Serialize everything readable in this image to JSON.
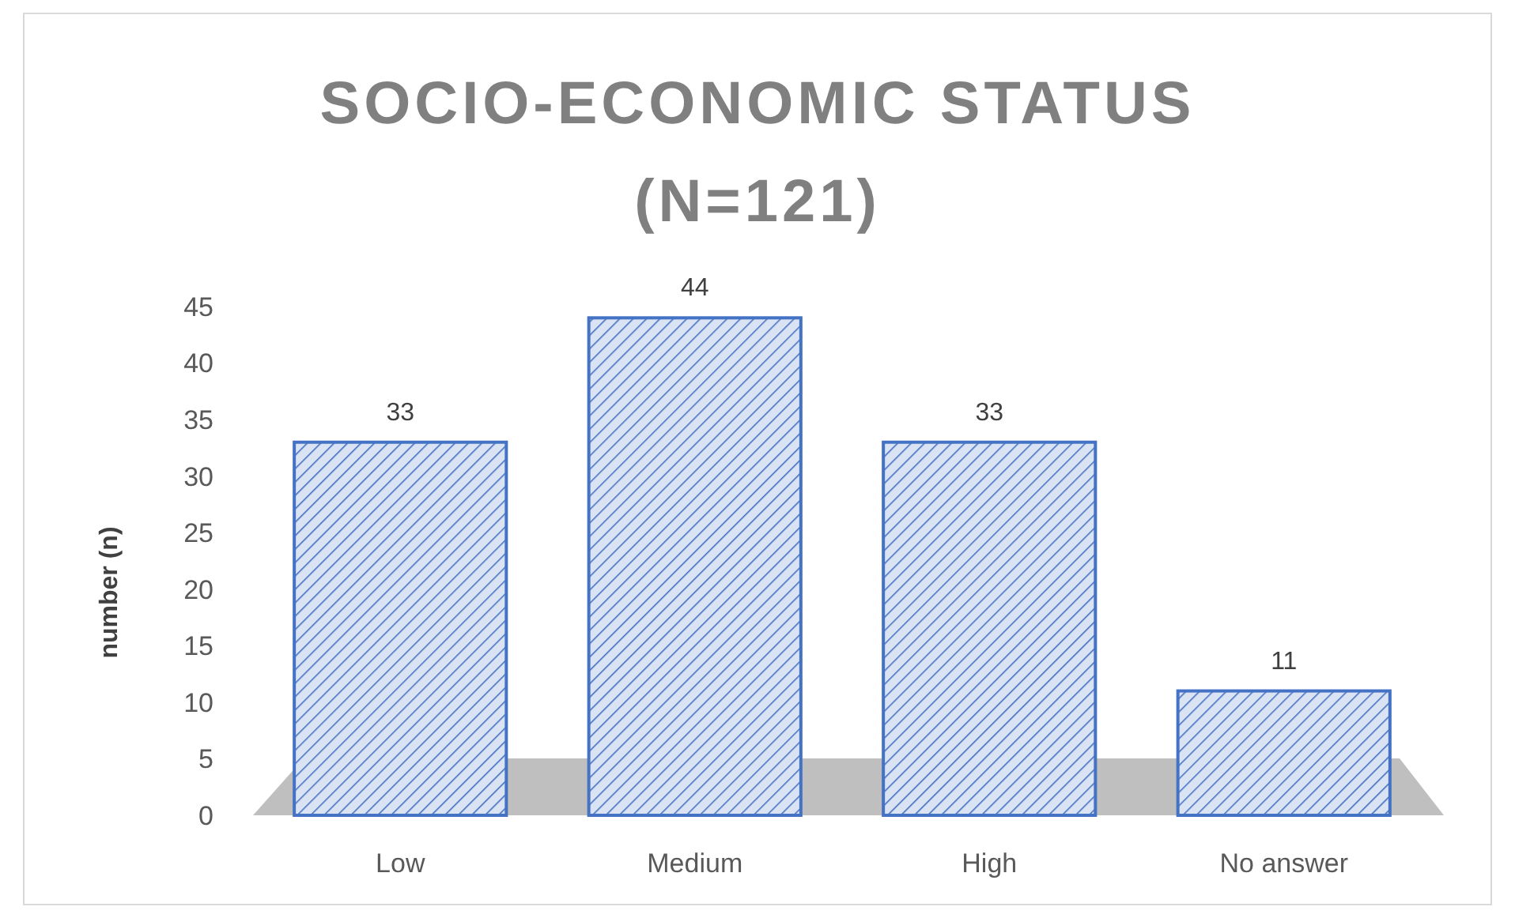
{
  "chart_data": {
    "type": "bar",
    "title": "SOCIO-ECONOMIC STATUS (N=121)",
    "ylabel": "number (n)",
    "categories": [
      "Low",
      "Medium",
      "High",
      "No answer"
    ],
    "values": [
      33,
      44,
      33,
      11
    ],
    "color": "#4472c4",
    "ylim": [
      0,
      45
    ],
    "yticks": [
      0,
      5,
      10,
      15,
      20,
      25,
      30,
      35,
      40,
      45
    ],
    "grid": false,
    "data_labels": true
  }
}
